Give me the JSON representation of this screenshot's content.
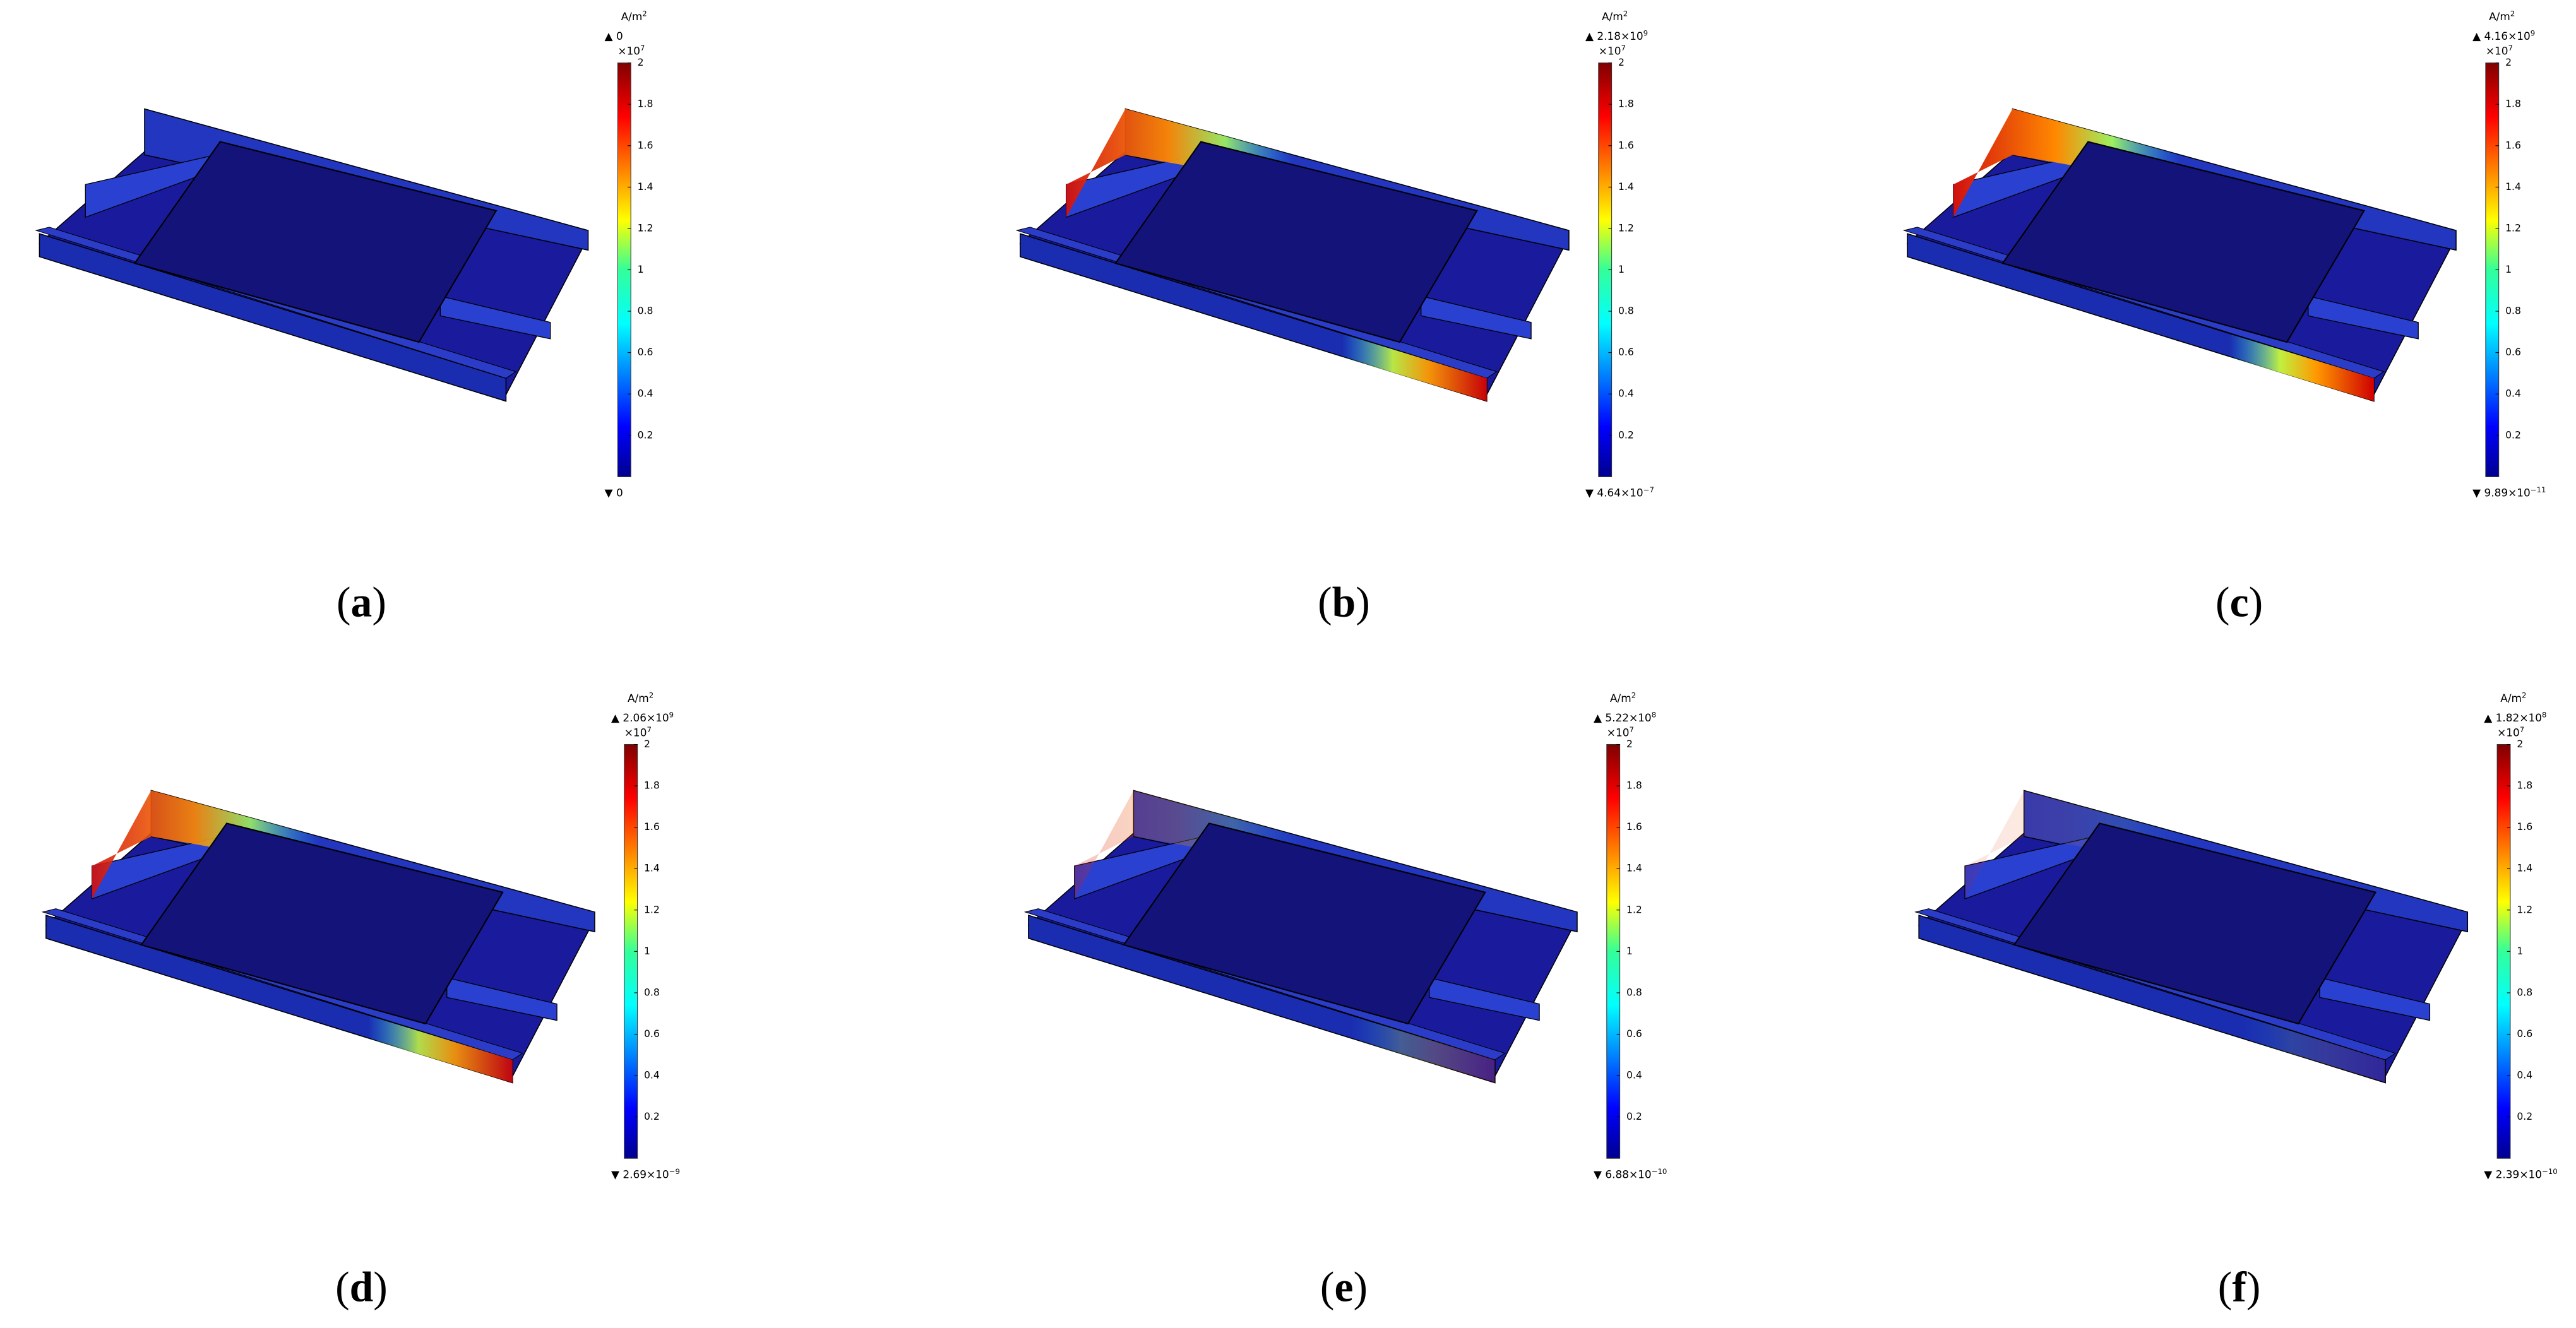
{
  "colorbar_ticks": [
    "2",
    "1.8",
    "1.6",
    "1.4",
    "1.2",
    "1",
    "0.8",
    "0.6",
    "0.4",
    "0.2"
  ],
  "unit": {
    "base": "A/m",
    "exp": "2"
  },
  "multiplier": {
    "base": "×10",
    "exp": "7"
  },
  "panels": [
    {
      "letter": "a",
      "max": {
        "base": "0",
        "exp": null
      },
      "min": {
        "base": "0",
        "exp": null
      }
    },
    {
      "letter": "b",
      "max": {
        "base": "2.18×10",
        "exp": "9"
      },
      "min": {
        "base": "4.64×10",
        "exp": "−7"
      }
    },
    {
      "letter": "c",
      "max": {
        "base": "4.16×10",
        "exp": "9"
      },
      "min": {
        "base": "9.89×10",
        "exp": "−11"
      }
    },
    {
      "letter": "d",
      "max": {
        "base": "2.06×10",
        "exp": "9"
      },
      "min": {
        "base": "2.69×10",
        "exp": "−9"
      }
    },
    {
      "letter": "e",
      "max": {
        "base": "5.22×10",
        "exp": "8"
      },
      "min": {
        "base": "6.88×10",
        "exp": "−10"
      }
    },
    {
      "letter": "f",
      "max": {
        "base": "1.82×10",
        "exp": "8"
      },
      "min": {
        "base": "2.39×10",
        "exp": "−10"
      }
    }
  ]
}
